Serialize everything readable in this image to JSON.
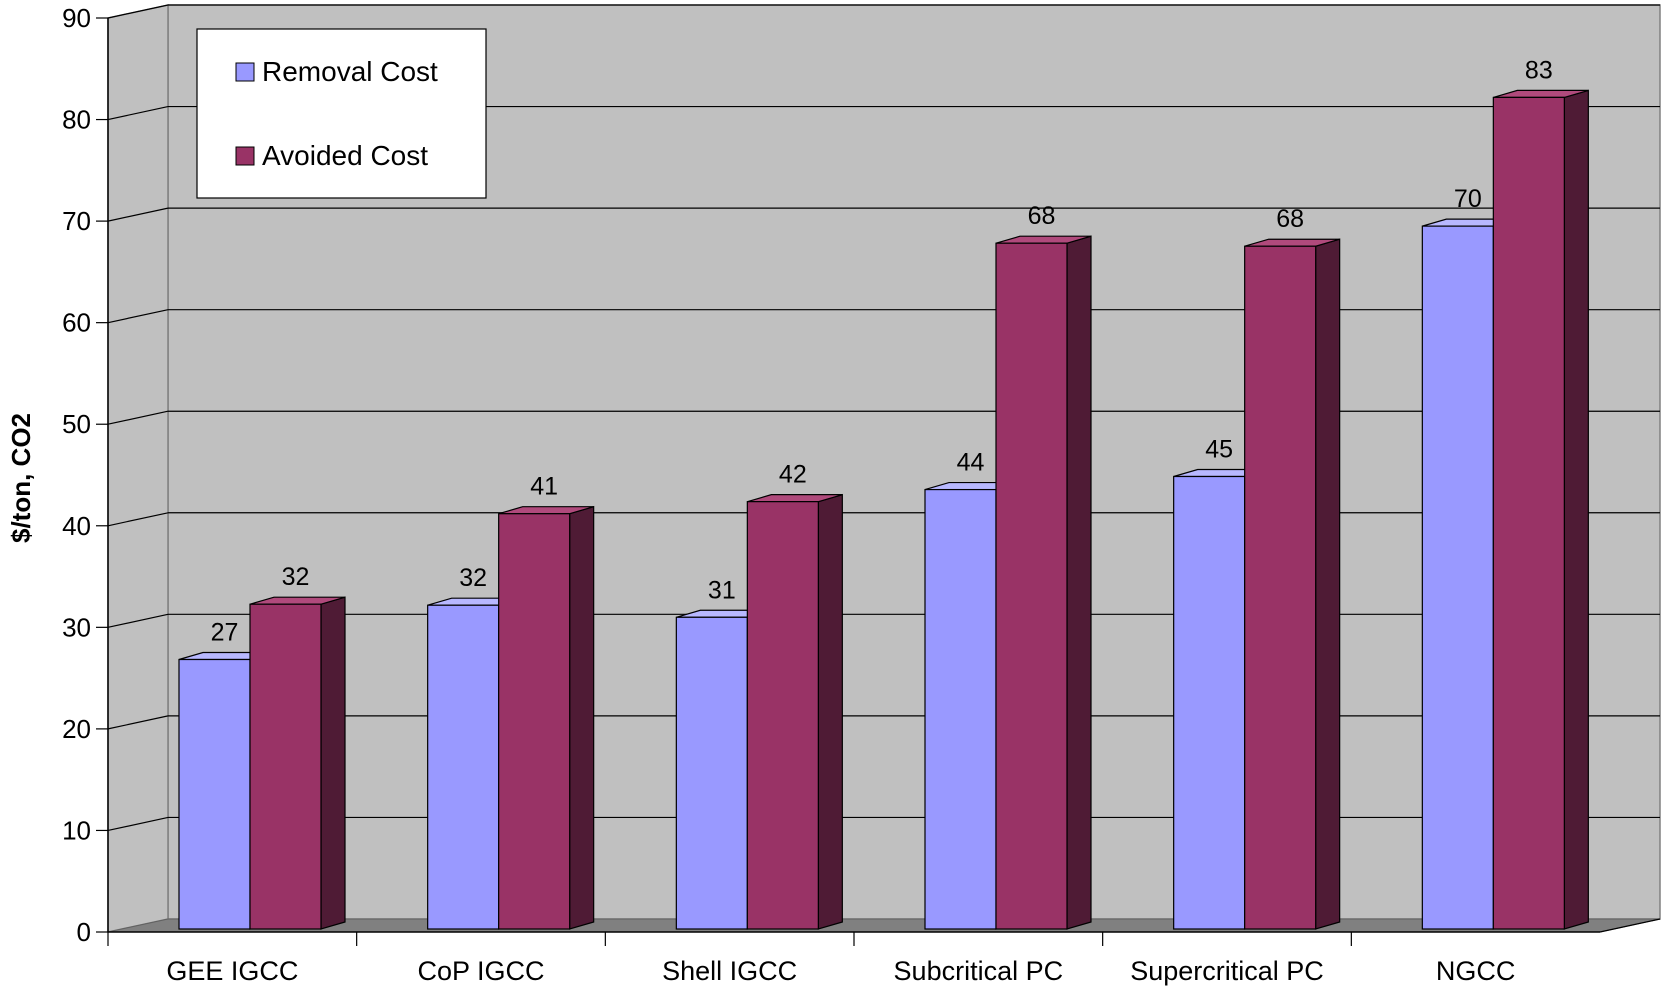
{
  "chart_data": {
    "type": "bar",
    "title": "",
    "xlabel": "",
    "ylabel": "$/ton, CO2",
    "ylim": [
      0,
      90
    ],
    "y_ticks": [
      0,
      10,
      20,
      30,
      40,
      50,
      60,
      70,
      80,
      90
    ],
    "grid": true,
    "legend_position": "top-left",
    "categories": [
      "GEE IGCC",
      "CoP IGCC",
      "Shell IGCC",
      "Subcritical PC",
      "Supercritical PC",
      "NGCC"
    ],
    "series": [
      {
        "name": "Removal Cost",
        "values": [
          26.8,
          32.2,
          31.0,
          43.7,
          45.0,
          69.9
        ],
        "labels": [
          "27",
          "32",
          "31",
          "44",
          "45",
          "70"
        ],
        "color": "#9999ff",
        "side_color": "#6a6ad0",
        "top_color": "#b8b8ff"
      },
      {
        "name": "Avoided Cost",
        "values": [
          32.3,
          41.3,
          42.5,
          68.2,
          67.9,
          82.7
        ],
        "labels": [
          "32",
          "41",
          "42",
          "68",
          "68",
          "83"
        ],
        "color": "#993366",
        "side_color": "#4f1b35",
        "top_color": "#b04a7c"
      }
    ],
    "colors": {
      "wall": "#c0c0c0",
      "floor": "#808080",
      "gridline": "#000000"
    }
  }
}
